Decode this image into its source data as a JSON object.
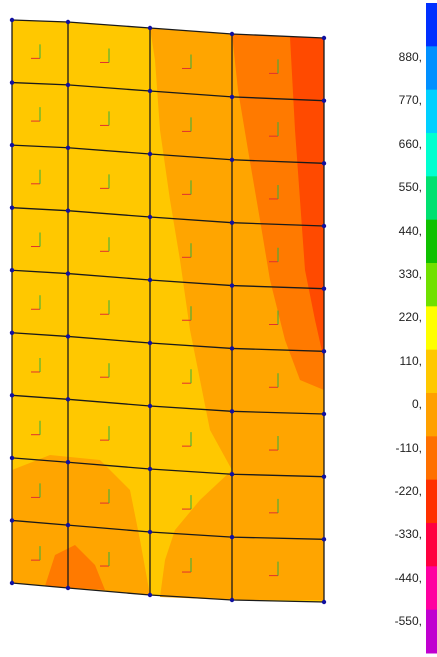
{
  "mesh": {
    "columns": 4,
    "rows": 9,
    "element_color": "#ffc800",
    "edge_color": "#1a1a1a",
    "node_color": "#1010a0"
  },
  "legend": {
    "labels": [
      "880,",
      "770,",
      "660,",
      "550,",
      "440,",
      "330,",
      "220,",
      "110,",
      "0,",
      "-110,",
      "-220,",
      "-330,",
      "-440,",
      "-550,"
    ],
    "colors": [
      "#0030ff",
      "#0090ff",
      "#00d0ff",
      "#00ffd0",
      "#00e070",
      "#10c000",
      "#70e000",
      "#ffff00",
      "#ffc800",
      "#ffa000",
      "#ff7000",
      "#ff3000",
      "#ff0040",
      "#ff00a0",
      "#c000d0"
    ]
  },
  "contour_colors": {
    "yellow": "#ffc800",
    "light_orange": "#ffa500",
    "orange": "#ff7a00",
    "red_orange": "#ff4a00"
  }
}
